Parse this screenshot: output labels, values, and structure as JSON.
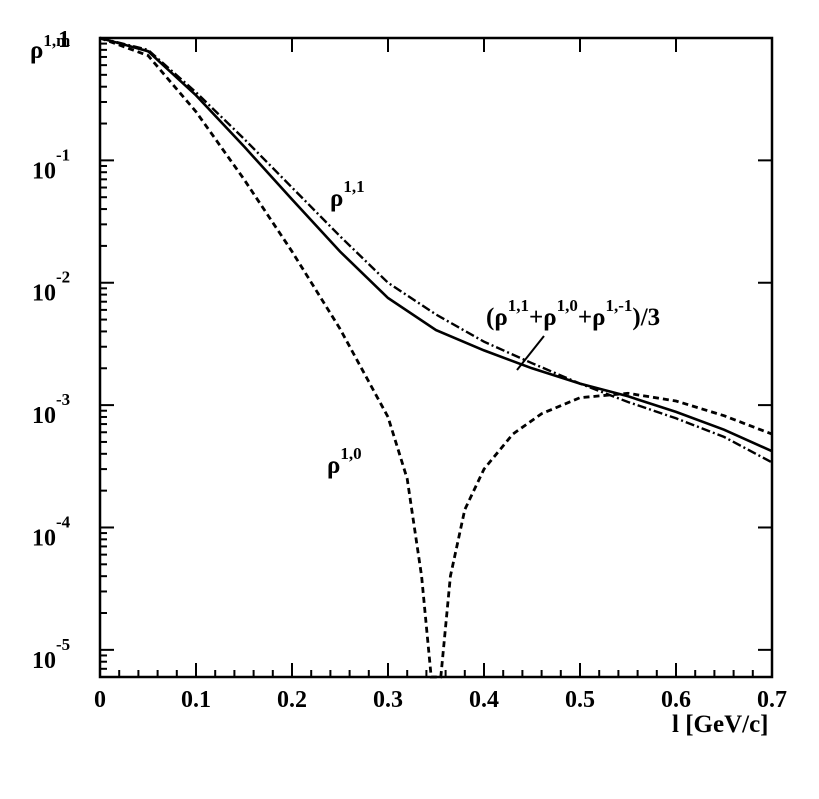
{
  "chart_data": {
    "type": "line",
    "title": "",
    "xlabel": "l [GeV/c]",
    "ylabel_base": "ρ",
    "ylabel_sup": "1,m",
    "xlim": [
      0,
      0.7
    ],
    "ylim": [
      6e-06,
      1
    ],
    "yscale": "log",
    "grid": false,
    "x_ticks": [
      {
        "v": 0,
        "label": "0"
      },
      {
        "v": 0.1,
        "label": "0.1"
      },
      {
        "v": 0.2,
        "label": "0.2"
      },
      {
        "v": 0.3,
        "label": "0.3"
      },
      {
        "v": 0.4,
        "label": "0.4"
      },
      {
        "v": 0.5,
        "label": "0.5"
      },
      {
        "v": 0.6,
        "label": "0.6"
      },
      {
        "v": 0.7,
        "label": "0.7"
      }
    ],
    "y_ticks": [
      {
        "v": 1,
        "base": "1",
        "exp": ""
      },
      {
        "v": 0.1,
        "base": "10",
        "exp": "-1"
      },
      {
        "v": 0.01,
        "base": "10",
        "exp": "-2"
      },
      {
        "v": 0.001,
        "base": "10",
        "exp": "-3"
      },
      {
        "v": 0.0001,
        "base": "10",
        "exp": "-4"
      },
      {
        "v": 1e-05,
        "base": "10",
        "exp": "-5"
      }
    ],
    "series": [
      {
        "name": "ρ^{1,1}",
        "style": "dashdot",
        "points": [
          [
            0,
            1
          ],
          [
            0.05,
            0.8
          ],
          [
            0.1,
            0.36
          ],
          [
            0.15,
            0.15
          ],
          [
            0.2,
            0.06
          ],
          [
            0.25,
            0.024
          ],
          [
            0.3,
            0.01
          ],
          [
            0.35,
            0.0055
          ],
          [
            0.4,
            0.0033
          ],
          [
            0.45,
            0.0022
          ],
          [
            0.5,
            0.0015
          ],
          [
            0.55,
            0.00106
          ],
          [
            0.6,
            0.00078
          ],
          [
            0.65,
            0.00055
          ],
          [
            0.7,
            0.00034
          ]
        ]
      },
      {
        "name": "(ρ^{1,1}+ρ^{1,0}+ρ^{1,-1})/3",
        "style": "solid",
        "points": [
          [
            0,
            1
          ],
          [
            0.05,
            0.78
          ],
          [
            0.1,
            0.34
          ],
          [
            0.15,
            0.13
          ],
          [
            0.2,
            0.048
          ],
          [
            0.25,
            0.018
          ],
          [
            0.3,
            0.0075
          ],
          [
            0.35,
            0.0041
          ],
          [
            0.4,
            0.0028
          ],
          [
            0.45,
            0.002
          ],
          [
            0.5,
            0.0015
          ],
          [
            0.55,
            0.00118
          ],
          [
            0.6,
            0.00088
          ],
          [
            0.65,
            0.00063
          ],
          [
            0.7,
            0.00042
          ]
        ]
      },
      {
        "name": "ρ^{1,0}",
        "style": "dashed",
        "points": [
          [
            0,
            1
          ],
          [
            0.05,
            0.72
          ],
          [
            0.1,
            0.25
          ],
          [
            0.15,
            0.07
          ],
          [
            0.2,
            0.018
          ],
          [
            0.25,
            0.0042
          ],
          [
            0.3,
            0.0008
          ],
          [
            0.32,
            0.00025
          ],
          [
            0.335,
            4e-05
          ],
          [
            0.345,
            6e-06
          ],
          [
            0.355,
            6e-06
          ],
          [
            0.365,
            4e-05
          ],
          [
            0.38,
            0.00014
          ],
          [
            0.4,
            0.0003
          ],
          [
            0.43,
            0.00058
          ],
          [
            0.46,
            0.00085
          ],
          [
            0.5,
            0.00115
          ],
          [
            0.55,
            0.00125
          ],
          [
            0.6,
            0.00108
          ],
          [
            0.65,
            0.00082
          ],
          [
            0.7,
            0.00058
          ]
        ]
      }
    ],
    "annotations": [
      {
        "id": "rho11",
        "base": "ρ",
        "sup": "1,1"
      },
      {
        "id": "rho10",
        "base": "ρ",
        "sup": "1,0"
      },
      {
        "id": "avg",
        "parts": [
          "(ρ",
          "1,1",
          "+ρ",
          "1,0",
          "+ρ",
          "1,-1",
          ")/3"
        ]
      }
    ]
  }
}
